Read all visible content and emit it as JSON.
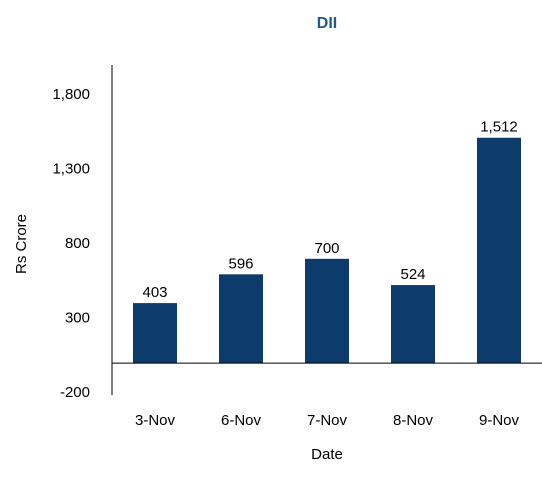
{
  "chart_data": {
    "type": "bar",
    "title": "DII",
    "x_label": "Date",
    "y_label": "Rs Crore",
    "categories": [
      "3-Nov",
      "6-Nov",
      "7-Nov",
      "8-Nov",
      "9-Nov"
    ],
    "values": [
      403,
      596,
      700,
      524,
      1512
    ],
    "value_labels": [
      "403",
      "596",
      "700",
      "524",
      "1,512"
    ],
    "color": "#0d3b6b",
    "ylim": [
      -200,
      2000
    ],
    "yticks": [
      -200,
      300,
      800,
      {
        "value": 1300,
        "label": "1,300"
      },
      {
        "value": 1800,
        "label": "1,800"
      }
    ],
    "grid": false
  }
}
